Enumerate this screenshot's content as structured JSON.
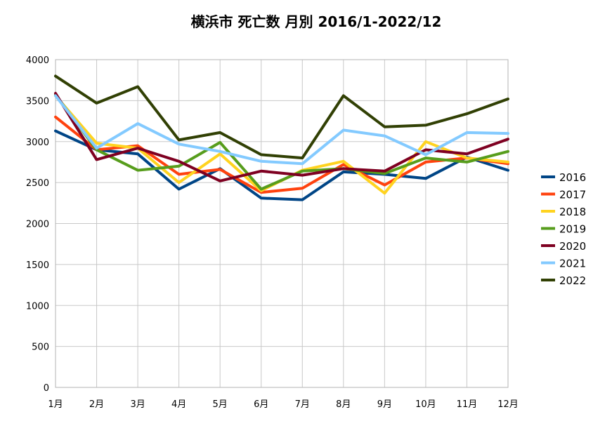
{
  "chart_data": {
    "type": "line",
    "title": "横浜市 死亡数 月別 2016/1-2022/12",
    "xlabel": "",
    "ylabel": "",
    "categories": [
      "1月",
      "2月",
      "3月",
      "4月",
      "5月",
      "6月",
      "7月",
      "8月",
      "9月",
      "10月",
      "11月",
      "12月"
    ],
    "ylim": [
      0,
      4000
    ],
    "yticks": [
      0,
      500,
      1000,
      1500,
      2000,
      2500,
      3000,
      3500,
      4000
    ],
    "grid": true,
    "legend_position": "right",
    "series": [
      {
        "name": "2016",
        "color": "#004586",
        "values": [
          3130,
          2900,
          2850,
          2420,
          2670,
          2310,
          2290,
          2630,
          2600,
          2550,
          2810,
          2650
        ]
      },
      {
        "name": "2017",
        "color": "#ff420e",
        "values": [
          3300,
          2900,
          2950,
          2600,
          2660,
          2380,
          2430,
          2720,
          2470,
          2750,
          2800,
          2730
        ]
      },
      {
        "name": "2018",
        "color": "#ffd320",
        "values": [
          3560,
          2980,
          2920,
          2500,
          2850,
          2400,
          2650,
          2760,
          2370,
          3000,
          2800,
          2750
        ]
      },
      {
        "name": "2019",
        "color": "#579d1c",
        "values": [
          3570,
          2900,
          2650,
          2700,
          2990,
          2420,
          2640,
          2670,
          2610,
          2800,
          2750,
          2880
        ]
      },
      {
        "name": "2020",
        "color": "#7e0021",
        "values": [
          3590,
          2780,
          2920,
          2760,
          2520,
          2640,
          2590,
          2670,
          2640,
          2900,
          2850,
          3030
        ]
      },
      {
        "name": "2021",
        "color": "#83caff",
        "values": [
          3560,
          2920,
          3220,
          2970,
          2880,
          2760,
          2730,
          3140,
          3070,
          2840,
          3110,
          3100
        ]
      },
      {
        "name": "2022",
        "color": "#314004",
        "values": [
          3800,
          3470,
          3670,
          3020,
          3110,
          2840,
          2800,
          3560,
          3180,
          3200,
          3340,
          3520
        ]
      }
    ]
  }
}
